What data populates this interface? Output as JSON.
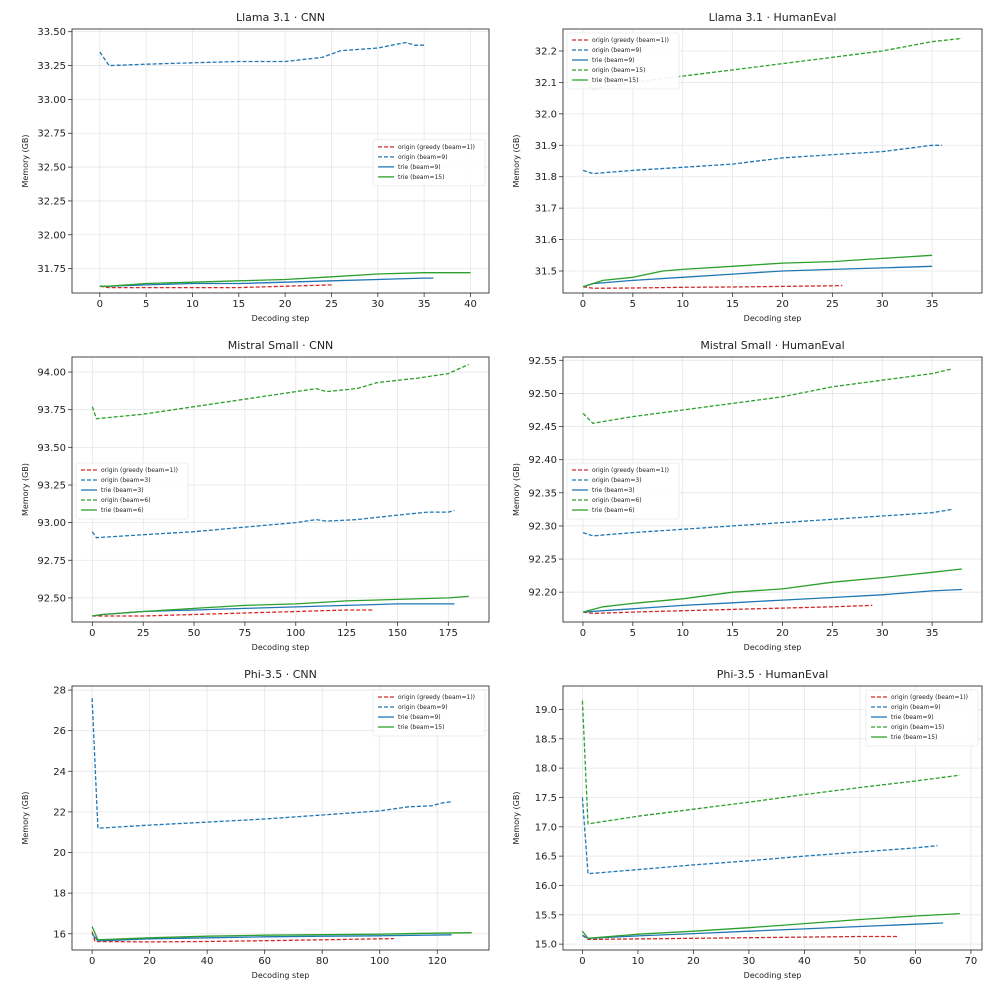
{
  "figure": {
    "colors": {
      "red": "#d62728",
      "blue": "#1f77b4",
      "green": "#2ca02c"
    }
  },
  "chart_data": [
    {
      "type": "line",
      "title": "Llama 3.1 · CNN",
      "xlabel": "Decoding step",
      "ylabel": "Memory (GB)",
      "xlim": [
        -3,
        42
      ],
      "ylim": [
        31.57,
        33.52
      ],
      "xticks": [
        0,
        5,
        10,
        15,
        20,
        25,
        30,
        35,
        40
      ],
      "yticks": [
        31.75,
        32.0,
        32.25,
        32.5,
        32.75,
        33.0,
        33.25,
        33.5
      ],
      "ytick_labels": [
        "31.75",
        "32.00",
        "32.25",
        "32.50",
        "32.75",
        "33.00",
        "33.25",
        "33.50"
      ],
      "legend_loc": "center-right",
      "series": [
        {
          "name": "origin (greedy (beam=1))",
          "color": "red",
          "dash": true,
          "x": [
            0,
            1,
            5,
            10,
            15,
            20,
            25
          ],
          "y": [
            31.62,
            31.61,
            31.61,
            31.61,
            31.61,
            31.62,
            31.63
          ]
        },
        {
          "name": "origin (beam=9)",
          "color": "blue",
          "dash": true,
          "x": [
            0,
            1,
            5,
            10,
            15,
            20,
            24,
            26,
            30,
            33,
            34,
            35
          ],
          "y": [
            33.35,
            33.25,
            33.26,
            33.27,
            33.28,
            33.28,
            33.31,
            33.36,
            33.38,
            33.42,
            33.4,
            33.4
          ]
        },
        {
          "name": "trie (beam=9)",
          "color": "blue",
          "dash": false,
          "x": [
            0,
            1,
            5,
            10,
            15,
            20,
            25,
            30,
            35,
            36
          ],
          "y": [
            31.62,
            31.62,
            31.63,
            31.64,
            31.64,
            31.65,
            31.66,
            31.67,
            31.68,
            31.68
          ]
        },
        {
          "name": "trie (beam=15)",
          "color": "green",
          "dash": false,
          "x": [
            0,
            1,
            5,
            10,
            15,
            20,
            25,
            30,
            35,
            40
          ],
          "y": [
            31.62,
            31.62,
            31.64,
            31.65,
            31.66,
            31.67,
            31.69,
            31.71,
            31.72,
            31.72
          ]
        }
      ]
    },
    {
      "type": "line",
      "title": "Llama 3.1 · HumanEval",
      "xlabel": "Decoding step",
      "ylabel": "Memory (GB)",
      "xlim": [
        -2,
        40
      ],
      "ylim": [
        31.43,
        32.27
      ],
      "xticks": [
        0,
        5,
        10,
        15,
        20,
        25,
        30,
        35
      ],
      "yticks": [
        31.5,
        31.6,
        31.7,
        31.8,
        31.9,
        32.0,
        32.1,
        32.2
      ],
      "ytick_labels": [
        "31.5",
        "31.6",
        "31.7",
        "31.8",
        "31.9",
        "32.0",
        "32.1",
        "32.2"
      ],
      "legend_loc": "top-left",
      "series": [
        {
          "name": "origin (greedy (beam=1))",
          "color": "red",
          "dash": true,
          "x": [
            0,
            1,
            5,
            10,
            15,
            20,
            25,
            26
          ],
          "y": [
            31.45,
            31.445,
            31.446,
            31.448,
            31.449,
            31.451,
            31.453,
            31.454
          ]
        },
        {
          "name": "origin (beam=9)",
          "color": "blue",
          "dash": true,
          "x": [
            0,
            1,
            5,
            10,
            15,
            20,
            25,
            30,
            35,
            36
          ],
          "y": [
            31.82,
            31.81,
            31.82,
            31.83,
            31.84,
            31.86,
            31.87,
            31.88,
            31.9,
            31.9
          ]
        },
        {
          "name": "trie (beam=9)",
          "color": "blue",
          "dash": false,
          "x": [
            0,
            1,
            5,
            10,
            15,
            20,
            25,
            30,
            35
          ],
          "y": [
            31.45,
            31.46,
            31.47,
            31.48,
            31.49,
            31.5,
            31.505,
            31.51,
            31.515
          ]
        },
        {
          "name": "origin (beam=15)",
          "color": "green",
          "dash": true,
          "x": [
            0,
            1,
            5,
            10,
            15,
            20,
            25,
            30,
            35,
            38
          ],
          "y": [
            32.1,
            32.08,
            32.1,
            32.12,
            32.14,
            32.16,
            32.18,
            32.2,
            32.23,
            32.24
          ]
        },
        {
          "name": "trie (beam=15)",
          "color": "green",
          "dash": false,
          "x": [
            0,
            2,
            5,
            8,
            10,
            15,
            20,
            25,
            30,
            35
          ],
          "y": [
            31.45,
            31.47,
            31.48,
            31.5,
            31.505,
            31.515,
            31.525,
            31.53,
            31.54,
            31.55
          ]
        }
      ]
    },
    {
      "type": "line",
      "title": "Mistral Small · CNN",
      "xlabel": "Decoding step",
      "ylabel": "Memory (GB)",
      "xlim": [
        -10,
        195
      ],
      "ylim": [
        92.34,
        94.1
      ],
      "xticks": [
        0,
        25,
        50,
        75,
        100,
        125,
        150,
        175
      ],
      "yticks": [
        92.5,
        92.75,
        93.0,
        93.25,
        93.5,
        93.75,
        94.0
      ],
      "ytick_labels": [
        "92.50",
        "92.75",
        "93.00",
        "93.25",
        "93.50",
        "93.75",
        "94.00"
      ],
      "legend_loc": "center-left",
      "series": [
        {
          "name": "origin (greedy (beam=1))",
          "color": "red",
          "dash": true,
          "x": [
            0,
            5,
            25,
            50,
            75,
            100,
            125,
            138
          ],
          "y": [
            92.38,
            92.38,
            92.38,
            92.39,
            92.4,
            92.41,
            92.42,
            92.42
          ]
        },
        {
          "name": "origin (beam=3)",
          "color": "blue",
          "dash": true,
          "x": [
            0,
            2,
            25,
            50,
            75,
            100,
            110,
            115,
            130,
            150,
            165,
            175,
            178
          ],
          "y": [
            92.94,
            92.9,
            92.92,
            92.94,
            92.97,
            93.0,
            93.02,
            93.01,
            93.02,
            93.05,
            93.07,
            93.07,
            93.08
          ]
        },
        {
          "name": "trie (beam=3)",
          "color": "blue",
          "dash": false,
          "x": [
            0,
            5,
            25,
            50,
            75,
            100,
            125,
            150,
            175,
            178
          ],
          "y": [
            92.38,
            92.39,
            92.41,
            92.42,
            92.43,
            92.44,
            92.45,
            92.46,
            92.46,
            92.46
          ]
        },
        {
          "name": "origin (beam=6)",
          "color": "green",
          "dash": true,
          "x": [
            0,
            2,
            25,
            50,
            75,
            100,
            110,
            115,
            130,
            140,
            160,
            175,
            180,
            185
          ],
          "y": [
            93.77,
            93.69,
            93.72,
            93.77,
            93.82,
            93.87,
            93.89,
            93.87,
            93.89,
            93.93,
            93.96,
            93.99,
            94.02,
            94.05
          ]
        },
        {
          "name": "trie (beam=6)",
          "color": "green",
          "dash": false,
          "x": [
            0,
            5,
            25,
            50,
            75,
            100,
            125,
            150,
            175,
            185
          ],
          "y": [
            92.38,
            92.39,
            92.41,
            92.43,
            92.45,
            92.46,
            92.48,
            92.49,
            92.5,
            92.51
          ]
        }
      ]
    },
    {
      "type": "line",
      "title": "Mistral Small · HumanEval",
      "xlabel": "Decoding step",
      "ylabel": "Memory (GB)",
      "xlim": [
        -2,
        40
      ],
      "ylim": [
        92.155,
        92.555
      ],
      "xticks": [
        0,
        5,
        10,
        15,
        20,
        25,
        30,
        35
      ],
      "yticks": [
        92.2,
        92.25,
        92.3,
        92.35,
        92.4,
        92.45,
        92.5,
        92.55
      ],
      "ytick_labels": [
        "92.20",
        "92.25",
        "92.30",
        "92.35",
        "92.40",
        "92.45",
        "92.50",
        "92.55"
      ],
      "legend_loc": "center-left",
      "series": [
        {
          "name": "origin (greedy (beam=1))",
          "color": "red",
          "dash": true,
          "x": [
            0,
            1,
            5,
            10,
            15,
            20,
            25,
            29
          ],
          "y": [
            92.17,
            92.168,
            92.17,
            92.172,
            92.174,
            92.176,
            92.178,
            92.18
          ]
        },
        {
          "name": "origin (beam=3)",
          "color": "blue",
          "dash": true,
          "x": [
            0,
            1,
            5,
            10,
            15,
            20,
            25,
            30,
            35,
            37
          ],
          "y": [
            92.29,
            92.285,
            92.29,
            92.295,
            92.3,
            92.305,
            92.31,
            92.315,
            92.32,
            92.325
          ]
        },
        {
          "name": "trie (beam=3)",
          "color": "blue",
          "dash": false,
          "x": [
            0,
            2,
            5,
            10,
            15,
            20,
            25,
            30,
            35,
            38
          ],
          "y": [
            92.17,
            92.172,
            92.175,
            92.18,
            92.184,
            92.188,
            92.192,
            92.196,
            92.202,
            92.204
          ]
        },
        {
          "name": "origin (beam=6)",
          "color": "green",
          "dash": true,
          "x": [
            0,
            1,
            5,
            10,
            15,
            20,
            25,
            30,
            35,
            37
          ],
          "y": [
            92.47,
            92.455,
            92.465,
            92.475,
            92.485,
            92.495,
            92.51,
            92.52,
            92.53,
            92.537
          ]
        },
        {
          "name": "trie (beam=6)",
          "color": "green",
          "dash": false,
          "x": [
            0,
            2,
            5,
            10,
            15,
            20,
            25,
            30,
            35,
            38
          ],
          "y": [
            92.17,
            92.178,
            92.183,
            92.19,
            92.2,
            92.205,
            92.215,
            92.222,
            92.23,
            92.235
          ]
        }
      ]
    },
    {
      "type": "line",
      "title": "Phi-3.5 · CNN",
      "xlabel": "Decoding step",
      "ylabel": "Memory (GB)",
      "xlim": [
        -7,
        138
      ],
      "ylim": [
        15.2,
        28.2
      ],
      "xticks": [
        0,
        20,
        40,
        60,
        80,
        100,
        120
      ],
      "yticks": [
        16,
        18,
        20,
        22,
        24,
        26,
        28
      ],
      "ytick_labels": [
        "16",
        "18",
        "20",
        "22",
        "24",
        "26",
        "28"
      ],
      "legend_loc": "top-right",
      "series": [
        {
          "name": "origin (greedy (beam=1))",
          "color": "red",
          "dash": true,
          "x": [
            0,
            1,
            20,
            40,
            60,
            80,
            100,
            105
          ],
          "y": [
            16.1,
            15.62,
            15.6,
            15.62,
            15.66,
            15.7,
            15.75,
            15.76
          ]
        },
        {
          "name": "origin (beam=9)",
          "color": "blue",
          "dash": true,
          "x": [
            0,
            2,
            20,
            40,
            60,
            80,
            100,
            110,
            118,
            122,
            125
          ],
          "y": [
            27.6,
            21.2,
            21.35,
            21.5,
            21.65,
            21.85,
            22.05,
            22.25,
            22.3,
            22.45,
            22.5
          ]
        },
        {
          "name": "trie (beam=9)",
          "color": "blue",
          "dash": false,
          "x": [
            0,
            2,
            20,
            40,
            60,
            80,
            100,
            125
          ],
          "y": [
            16.0,
            15.65,
            15.75,
            15.8,
            15.85,
            15.88,
            15.9,
            15.95
          ]
        },
        {
          "name": "trie (beam=15)",
          "color": "green",
          "dash": false,
          "x": [
            0,
            2,
            20,
            40,
            60,
            80,
            100,
            115,
            132
          ],
          "y": [
            16.35,
            15.7,
            15.8,
            15.88,
            15.93,
            15.96,
            15.98,
            16.02,
            16.05
          ]
        }
      ]
    },
    {
      "type": "line",
      "title": "Phi-3.5 · HumanEval",
      "xlabel": "Decoding step",
      "ylabel": "Memory (GB)",
      "xlim": [
        -3.5,
        72
      ],
      "ylim": [
        14.9,
        19.4
      ],
      "xticks": [
        0,
        10,
        20,
        30,
        40,
        50,
        60,
        70
      ],
      "yticks": [
        15.0,
        15.5,
        16.0,
        16.5,
        17.0,
        17.5,
        18.0,
        18.5,
        19.0
      ],
      "ytick_labels": [
        "15.0",
        "15.5",
        "16.0",
        "16.5",
        "17.0",
        "17.5",
        "18.0",
        "18.5",
        "19.0"
      ],
      "legend_loc": "top-right",
      "series": [
        {
          "name": "origin (greedy (beam=1))",
          "color": "red",
          "dash": true,
          "x": [
            0,
            1,
            10,
            20,
            30,
            40,
            50,
            57
          ],
          "y": [
            15.15,
            15.08,
            15.09,
            15.1,
            15.11,
            15.12,
            15.13,
            15.13
          ]
        },
        {
          "name": "origin (beam=9)",
          "color": "blue",
          "dash": true,
          "x": [
            0,
            1,
            10,
            20,
            30,
            40,
            50,
            60,
            64
          ],
          "y": [
            17.5,
            16.2,
            16.27,
            16.35,
            16.42,
            16.5,
            16.57,
            16.64,
            16.68
          ]
        },
        {
          "name": "trie (beam=9)",
          "color": "blue",
          "dash": false,
          "x": [
            0,
            1,
            10,
            20,
            30,
            40,
            50,
            60,
            65
          ],
          "y": [
            15.15,
            15.1,
            15.14,
            15.18,
            15.22,
            15.26,
            15.3,
            15.34,
            15.36
          ]
        },
        {
          "name": "origin (beam=15)",
          "color": "green",
          "dash": true,
          "x": [
            0,
            1,
            10,
            20,
            30,
            40,
            50,
            60,
            68
          ],
          "y": [
            19.15,
            17.05,
            17.18,
            17.3,
            17.42,
            17.55,
            17.67,
            17.78,
            17.88
          ]
        },
        {
          "name": "trie (beam=15)",
          "color": "green",
          "dash": false,
          "x": [
            0,
            1,
            10,
            20,
            30,
            40,
            50,
            60,
            68
          ],
          "y": [
            15.22,
            15.1,
            15.17,
            15.22,
            15.28,
            15.35,
            15.42,
            15.48,
            15.52
          ]
        }
      ]
    }
  ]
}
